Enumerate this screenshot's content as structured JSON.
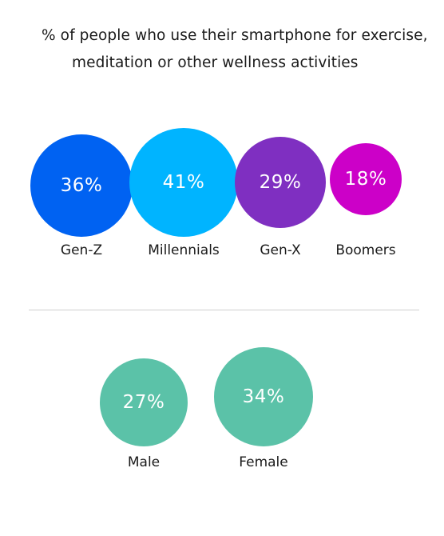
{
  "chart_data": [
    {
      "type": "bubble",
      "title_lines": [
        "% of people who use their smartphone for exercise,",
        "meditation or other wellness activities"
      ],
      "unit": "%",
      "categories": [
        "Gen-Z",
        "Millennials",
        "Gen-X",
        "Boomers"
      ],
      "values": [
        36,
        41,
        29,
        18
      ],
      "labels": [
        "36%",
        "41%",
        "29%",
        "18%"
      ],
      "colors": [
        "#0062f2",
        "#00b4ff",
        "#7f2fc1",
        "#cc00c8"
      ]
    },
    {
      "type": "bubble",
      "unit": "%",
      "categories": [
        "Male",
        "Female"
      ],
      "values": [
        27,
        34
      ],
      "labels": [
        "27%",
        "34%"
      ],
      "colors": [
        "#5bc2a8",
        "#5bc2a8"
      ]
    }
  ]
}
